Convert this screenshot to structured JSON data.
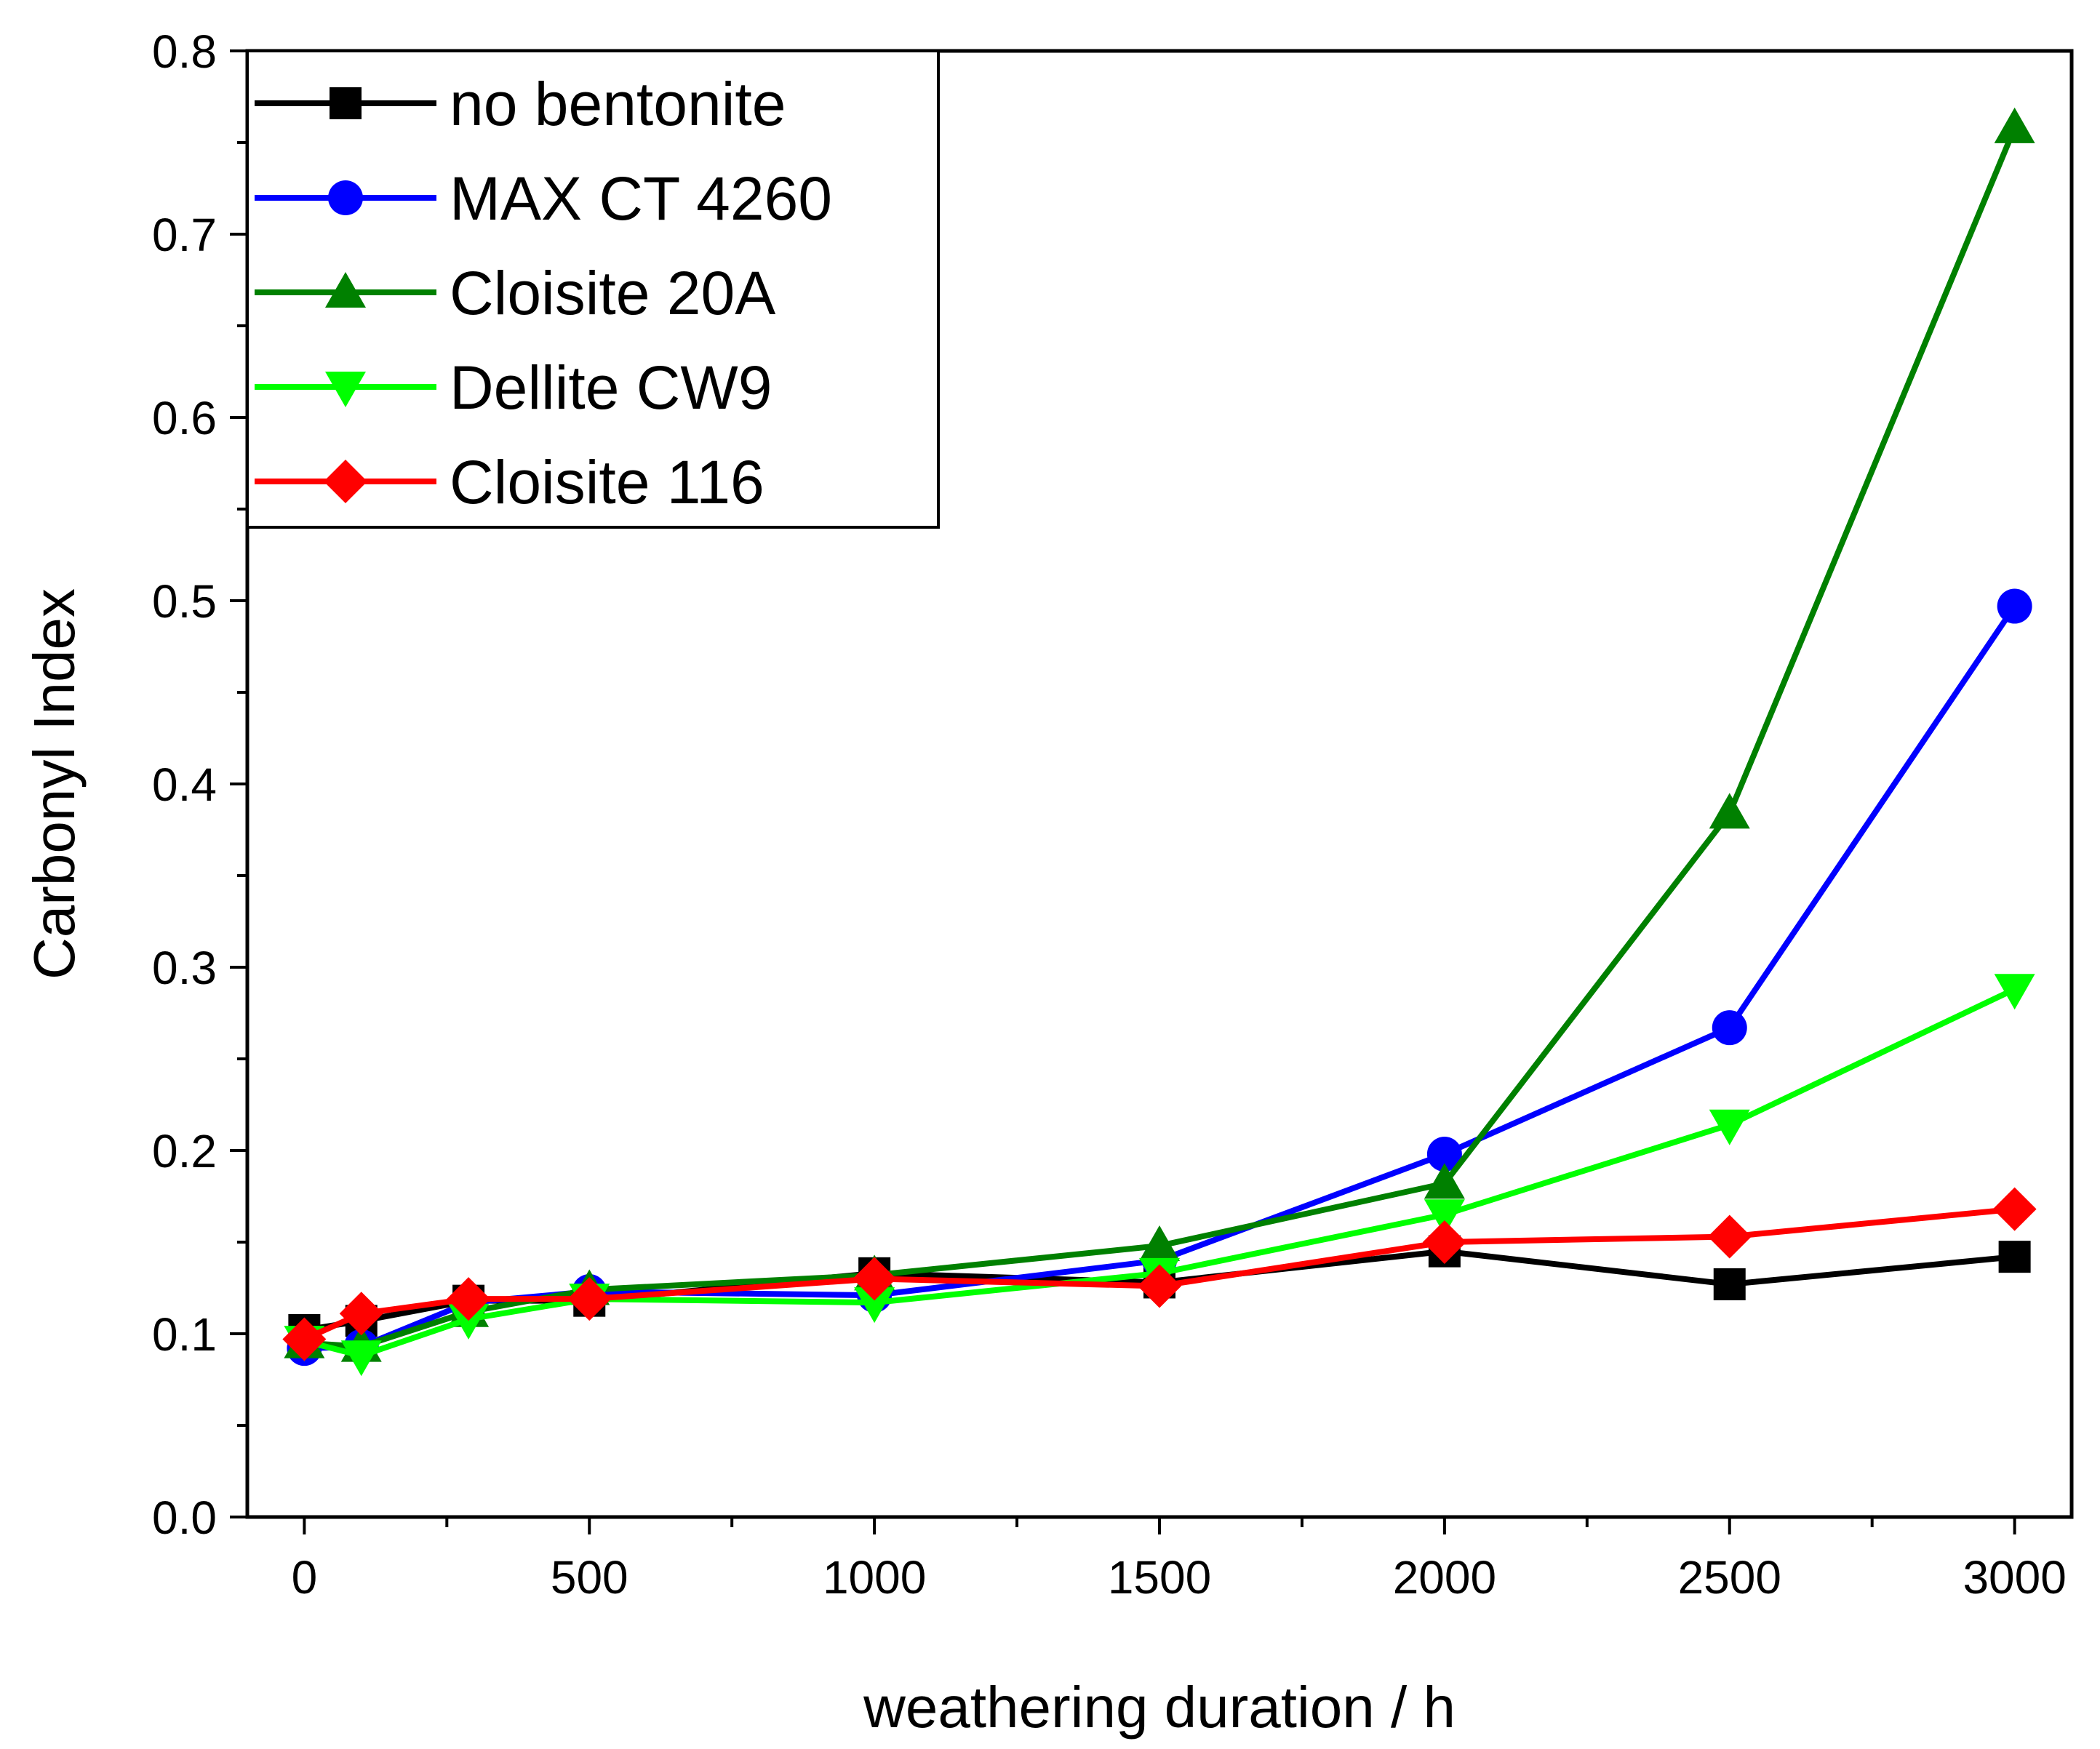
{
  "chart_data": {
    "type": "line",
    "title": "",
    "xlabel": "weathering duration / h",
    "ylabel": "Carbonyl Index",
    "xlim": [
      -100,
      3100
    ],
    "ylim": [
      0.0,
      0.8
    ],
    "x_ticks": [
      0,
      500,
      1000,
      1500,
      2000,
      2500,
      3000
    ],
    "x_tick_labels": [
      "0",
      "500",
      "1000",
      "1500",
      "2000",
      "2500",
      "3000"
    ],
    "y_ticks": [
      0.0,
      0.1,
      0.2,
      0.3,
      0.4,
      0.5,
      0.6,
      0.7,
      0.8
    ],
    "y_tick_labels": [
      "0.0",
      "0.1",
      "0.2",
      "0.3",
      "0.4",
      "0.5",
      "0.6",
      "0.7",
      "0.8"
    ],
    "grid": false,
    "legend_position": "top-left",
    "series": [
      {
        "name": "no bentonite",
        "color": "#000000",
        "marker": "square",
        "x": [
          0,
          100,
          288,
          500,
          1000,
          1500,
          2000,
          2500,
          3000
        ],
        "values": [
          0.102,
          0.107,
          0.118,
          0.118,
          0.133,
          0.128,
          0.145,
          0.127,
          0.142
        ]
      },
      {
        "name": "MAX CT 4260",
        "color": "#0000FF",
        "marker": "circle",
        "x": [
          0,
          100,
          288,
          500,
          1000,
          1500,
          2000,
          2500,
          3000
        ],
        "values": [
          0.092,
          0.093,
          0.117,
          0.123,
          0.121,
          0.14,
          0.198,
          0.267,
          0.497
        ]
      },
      {
        "name": "Cloisite 20A",
        "color": "#008000",
        "marker": "triangle-up",
        "x": [
          0,
          100,
          288,
          500,
          1000,
          1500,
          2000,
          2500,
          3000
        ],
        "values": [
          0.095,
          0.093,
          0.112,
          0.124,
          0.132,
          0.148,
          0.182,
          0.384,
          0.758
        ]
      },
      {
        "name": "Dellite CW9",
        "color": "#00FF00",
        "marker": "triangle-down",
        "x": [
          0,
          100,
          288,
          500,
          1000,
          1500,
          2000,
          2500,
          3000
        ],
        "values": [
          0.096,
          0.088,
          0.108,
          0.119,
          0.117,
          0.133,
          0.165,
          0.214,
          0.288
        ]
      },
      {
        "name": "Cloisite 116",
        "color": "#FF0000",
        "marker": "diamond",
        "x": [
          0,
          100,
          288,
          500,
          1000,
          1500,
          2000,
          2500,
          3000
        ],
        "values": [
          0.097,
          0.111,
          0.119,
          0.119,
          0.13,
          0.126,
          0.15,
          0.153,
          0.168
        ]
      }
    ]
  }
}
